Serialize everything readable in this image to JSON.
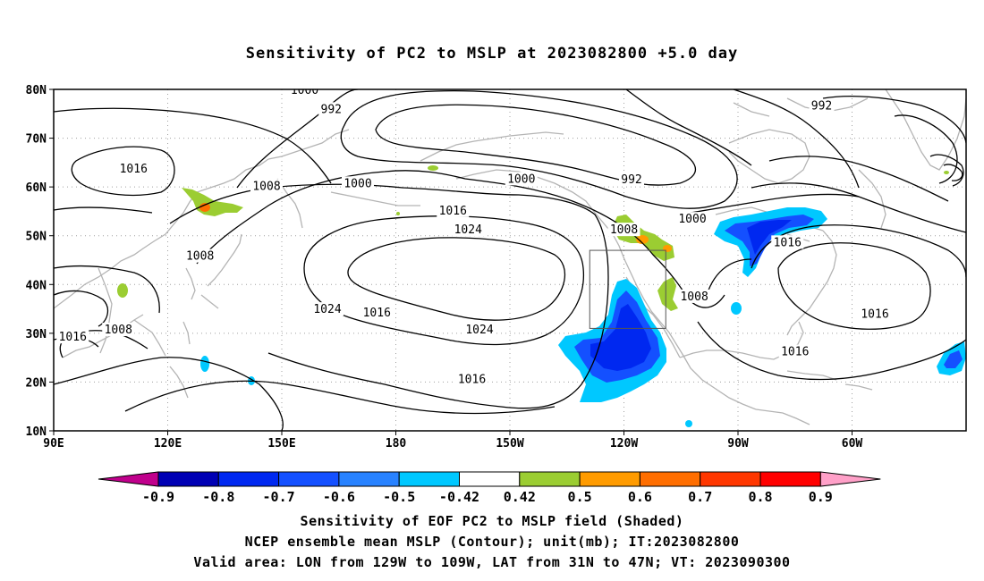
{
  "title": "Sensitivity of PC2 to MSLP at 2023082800 +5.0 day",
  "axes": {
    "lat_labels": [
      "80N",
      "70N",
      "60N",
      "50N",
      "40N",
      "30N",
      "20N",
      "10N"
    ],
    "lon_labels": [
      "90E",
      "120E",
      "150E",
      "180",
      "150W",
      "120W",
      "90W",
      "60W"
    ]
  },
  "contour_labels": [
    {
      "text": "1000",
      "lon": 156,
      "lat": 79.8
    },
    {
      "text": "992",
      "lon": 163,
      "lat": 75.9
    },
    {
      "text": "1000",
      "lon": 213,
      "lat": 61.6
    },
    {
      "text": "992",
      "lon": 242,
      "lat": 61.5
    },
    {
      "text": "1016",
      "lon": 111,
      "lat": 63.7
    },
    {
      "text": "1008",
      "lon": 146,
      "lat": 60.1
    },
    {
      "text": "1000",
      "lon": 170,
      "lat": 60.7
    },
    {
      "text": "1016",
      "lon": 195,
      "lat": 55.1
    },
    {
      "text": "1024",
      "lon": 199,
      "lat": 51.2
    },
    {
      "text": "1008",
      "lon": 240,
      "lat": 51.2
    },
    {
      "text": "1000",
      "lon": 258,
      "lat": 53.4
    },
    {
      "text": "1016",
      "lon": 283,
      "lat": 48.6
    },
    {
      "text": "992",
      "lon": 292,
      "lat": 76.6
    },
    {
      "text": "1008",
      "lon": 128.5,
      "lat": 45.8
    },
    {
      "text": "1024",
      "lon": 162,
      "lat": 34.9
    },
    {
      "text": "1016",
      "lon": 175,
      "lat": 34.2
    },
    {
      "text": "1024",
      "lon": 202,
      "lat": 30.7
    },
    {
      "text": "1008",
      "lon": 107,
      "lat": 30.7
    },
    {
      "text": "1016",
      "lon": 95,
      "lat": 29.2
    },
    {
      "text": "1016",
      "lon": 200,
      "lat": 20.5
    },
    {
      "text": "1008",
      "lon": 258.5,
      "lat": 37.5
    },
    {
      "text": "1016",
      "lon": 306,
      "lat": 33.9
    },
    {
      "text": "1016",
      "lon": 285,
      "lat": 26.2
    }
  ],
  "valid_box": {
    "lon_min": -129,
    "lon_max": -109,
    "lat_min": 31,
    "lat_max": 47
  },
  "colorbar": {
    "ticks": [
      "-0.9",
      "-0.8",
      "-0.7",
      "-0.6",
      "-0.5",
      "-0.42",
      "0.42",
      "0.5",
      "0.6",
      "0.7",
      "0.8",
      "0.9"
    ],
    "colors": [
      "#c0008c",
      "#0000b4",
      "#0028f0",
      "#1450ff",
      "#2882ff",
      "#00c8ff",
      "#ffffff",
      "#9bcd32",
      "#ff9b00",
      "#ff6e00",
      "#ff3700",
      "#ff0000",
      "#ffa0c8"
    ]
  },
  "footer": {
    "line1": "Sensitivity of EOF PC2 to MSLP field (Shaded)",
    "line2": "NCEP ensemble mean MSLP (Contour); unit(mb); IT:2023082800",
    "line3": "Valid area: LON from 129W to 109W, LAT from 31N to 47N; VT: 2023090300"
  }
}
